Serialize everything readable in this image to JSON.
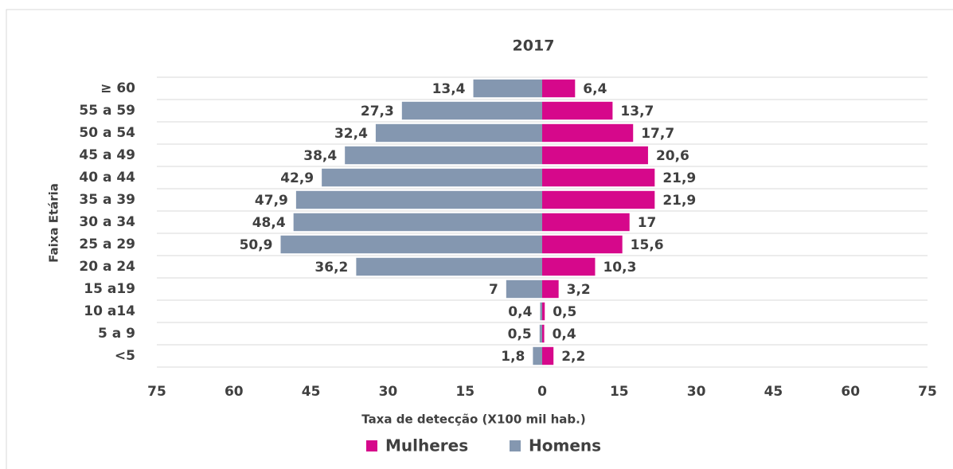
{
  "chart_data": {
    "type": "pyramid",
    "title": "2017",
    "xlabel": "Taxa de detecção (X100 mil hab.)",
    "ylabel": "Faixa Etária",
    "categories": [
      "≥ 60",
      "55 a 59",
      "50 a 54",
      "45 a 49",
      "40 a 44",
      "35 a 39",
      "30 a 34",
      "25 a 29",
      "20 a 24",
      "15 a19",
      "10 a14",
      "5 a 9",
      "<5"
    ],
    "series": [
      {
        "name": "Mulheres",
        "color": "#d6088b",
        "values": [
          6.4,
          13.7,
          17.7,
          20.6,
          21.9,
          21.9,
          17,
          15.6,
          10.3,
          3.2,
          0.5,
          0.4,
          2.2
        ],
        "value_labels": [
          "6,4",
          "13,7",
          "17,7",
          "20,6",
          "21,9",
          "21,9",
          "17",
          "15,6",
          "10,3",
          "3,2",
          "0,5",
          "0,4",
          "2,2"
        ]
      },
      {
        "name": "Homens",
        "color": "#8497b0",
        "values": [
          13.4,
          27.3,
          32.4,
          38.4,
          42.9,
          47.9,
          48.4,
          50.9,
          36.2,
          7,
          0.4,
          0.5,
          1.8
        ],
        "value_labels": [
          "13,4",
          "27,3",
          "32,4",
          "38,4",
          "42,9",
          "47,9",
          "48,4",
          "50,9",
          "36,2",
          "7",
          "0,4",
          "0,5",
          "1,8"
        ]
      }
    ],
    "xlim": [
      -75,
      75
    ],
    "xticks": [
      {
        "value": -75,
        "label": "75"
      },
      {
        "value": -60,
        "label": "60"
      },
      {
        "value": -45,
        "label": "45"
      },
      {
        "value": -30,
        "label": "30"
      },
      {
        "value": -15,
        "label": "15"
      },
      0,
      15,
      30,
      45,
      60,
      75
    ],
    "grid": true,
    "legend": "bottom"
  }
}
